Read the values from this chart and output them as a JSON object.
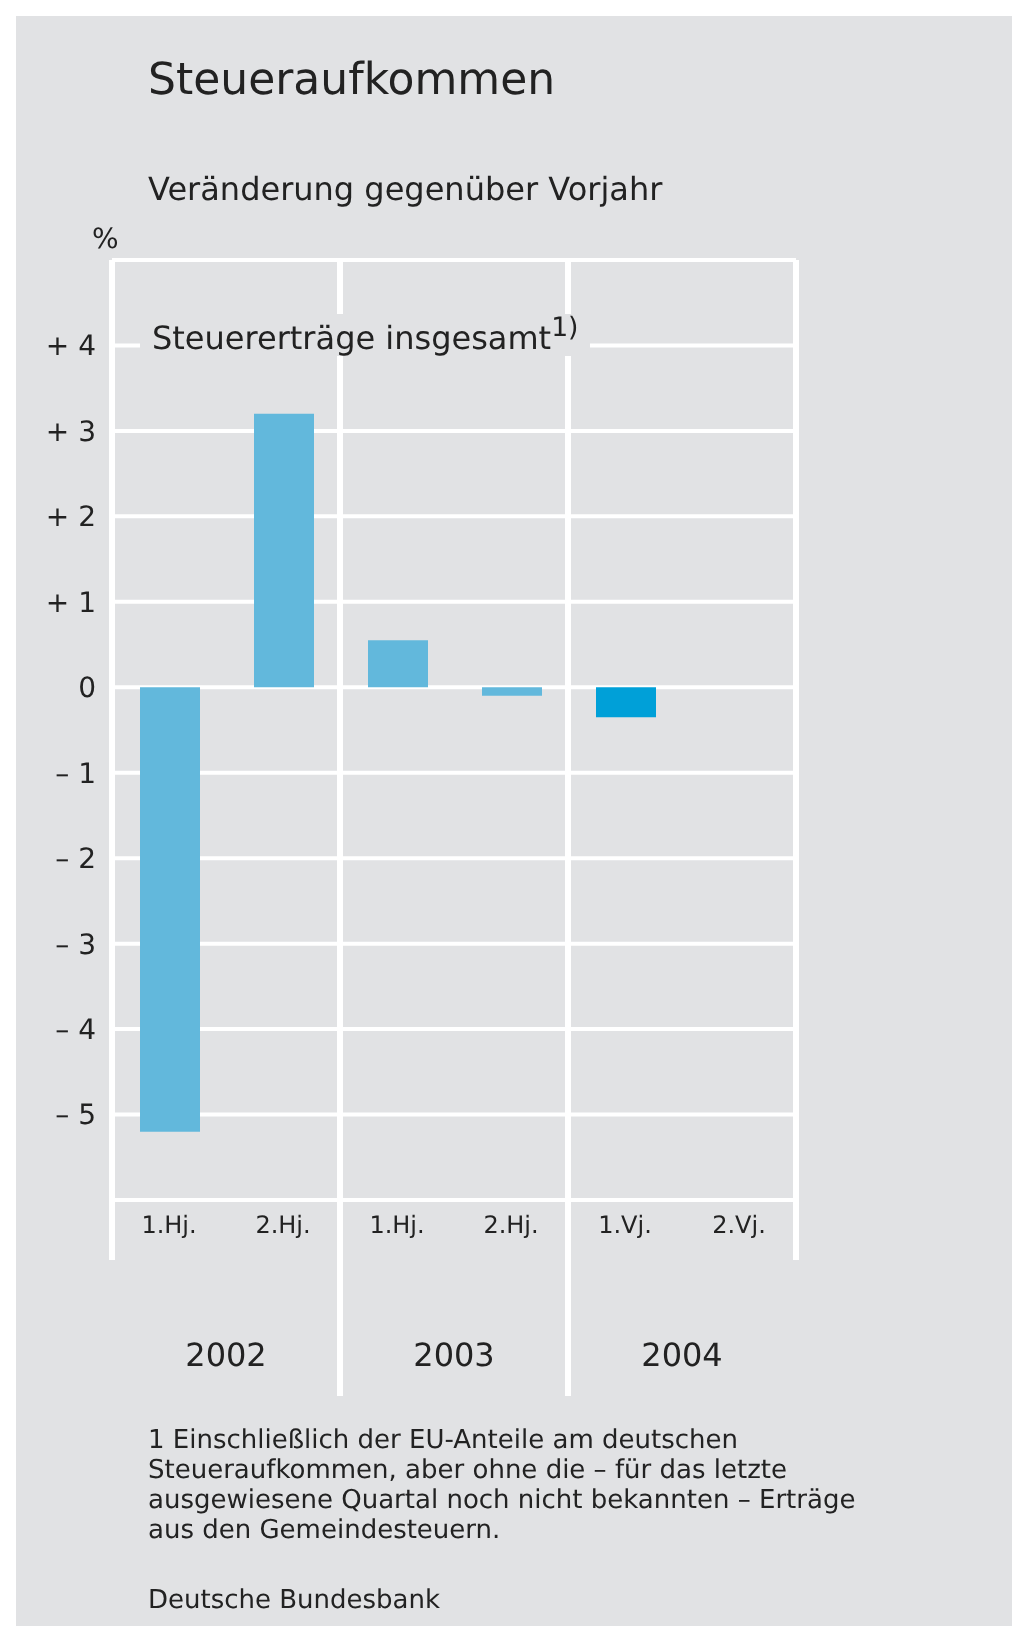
{
  "chart_data": {
    "type": "bar",
    "title": "Steueraufkommen",
    "subtitle": "Veränderung gegenüber Vorjahr",
    "ylabel": "%",
    "categories": [
      "1.Hj.",
      "2.Hj.",
      "1.Hj.",
      "2.Hj.",
      "1.Vj.",
      "2.Vj."
    ],
    "values": [
      -5.2,
      3.2,
      0.55,
      -0.1,
      -0.35,
      null
    ],
    "colors": [
      "#62b8dc",
      "#62b8dc",
      "#62b8dc",
      "#62b8dc",
      "#00a0d8",
      "#62b8dc"
    ],
    "ylim": [
      -6,
      5
    ],
    "yticks": [
      {
        "value": -5,
        "label": "– 5"
      },
      {
        "value": -4,
        "label": "– 4"
      },
      {
        "value": -3,
        "label": "– 3"
      },
      {
        "value": -2,
        "label": "– 2"
      },
      {
        "value": -1,
        "label": "– 1"
      },
      0,
      {
        "value": 1,
        "label": "+ 1"
      },
      {
        "value": 2,
        "label": "+ 2"
      },
      {
        "value": 3,
        "label": "+ 3"
      },
      {
        "value": 4,
        "label": "+ 4"
      }
    ],
    "grid": "y",
    "annotations": [
      "Steuererträge insgesamt$^{1)}$",
      "2002",
      "2003",
      "2004",
      "1 Einschließlich der EU-Anteile am deutschen Steueraufkommen, aber ohne die – für das letzte ausgewiesene Quartal noch nicht bekannten – Erträge aus den Gemeindesteuern.",
      "Deutsche Bundesbank"
    ]
  }
}
